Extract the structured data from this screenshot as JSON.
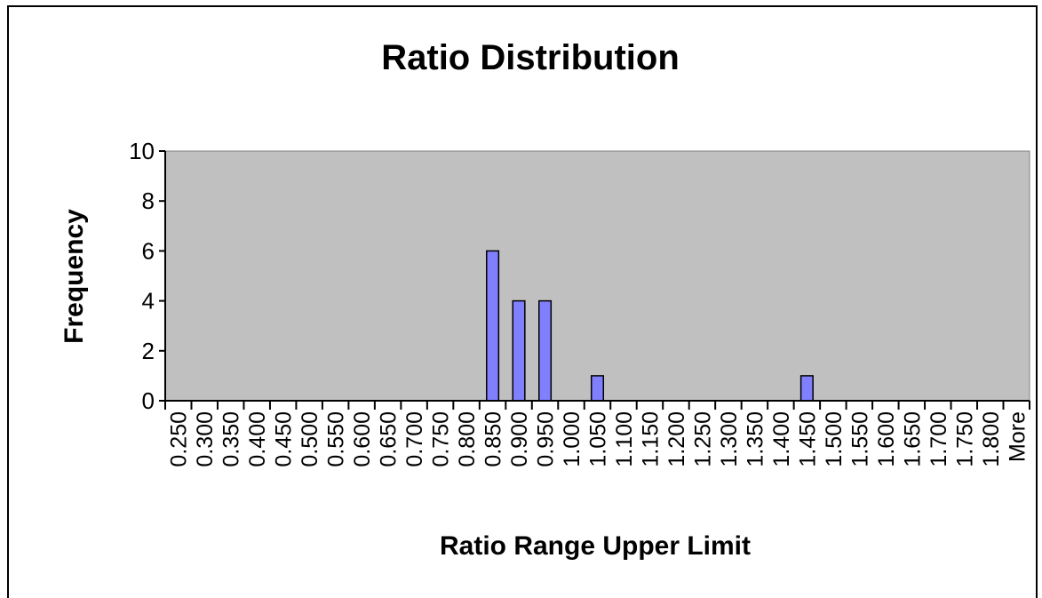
{
  "chart_data": {
    "type": "bar",
    "title": "Ratio Distribution",
    "xlabel": "Ratio Range Upper Limit",
    "ylabel": "Frequency",
    "categories": [
      "0.250",
      "0.300",
      "0.350",
      "0.400",
      "0.450",
      "0.500",
      "0.550",
      "0.600",
      "0.650",
      "0.700",
      "0.750",
      "0.800",
      "0.850",
      "0.900",
      "0.950",
      "1.000",
      "1.050",
      "1.100",
      "1.150",
      "1.200",
      "1.250",
      "1.300",
      "1.350",
      "1.400",
      "1.450",
      "1.500",
      "1.550",
      "1.600",
      "1.650",
      "1.700",
      "1.750",
      "1.800",
      "More"
    ],
    "series": [
      {
        "values": [
          0,
          0,
          0,
          0,
          0,
          0,
          0,
          0,
          0,
          0,
          0,
          0,
          6,
          4,
          4,
          0,
          1,
          0,
          0,
          0,
          0,
          0,
          0,
          0,
          1,
          0,
          0,
          0,
          0,
          0,
          0,
          0,
          0
        ]
      }
    ],
    "ylim": [
      0,
      10
    ],
    "yticks": [
      "0",
      "2",
      "4",
      "6",
      "8",
      "10"
    ],
    "grid": false,
    "legend": "none",
    "colors": {
      "plot_background": "#c0c0c0",
      "bar_fill": "#8080ff",
      "bar_stroke": "#000000",
      "axis": "#000000"
    }
  }
}
